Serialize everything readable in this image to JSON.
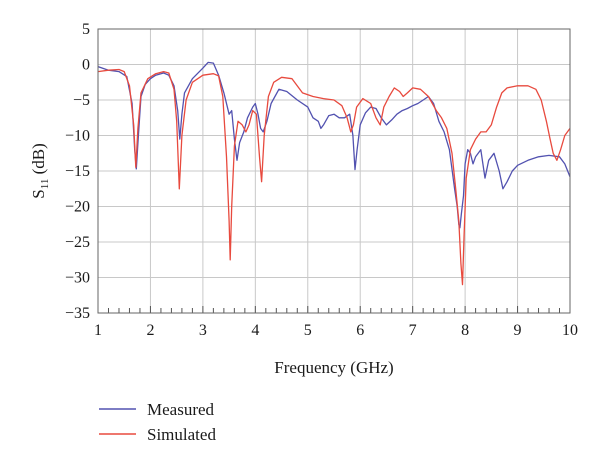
{
  "chart_data": {
    "type": "line",
    "title": "",
    "xlabel": "Frequency (GHz)",
    "ylabel": "S",
    "ylabel_sub": "11",
    "ylabel_unit": " (dB)",
    "xlim": [
      1,
      10
    ],
    "ylim": [
      -35,
      5
    ],
    "xticks": [
      1,
      2,
      3,
      4,
      5,
      6,
      7,
      8,
      9,
      10
    ],
    "yticks": [
      5,
      0,
      -5,
      -10,
      -15,
      -20,
      -25,
      -30,
      -35
    ],
    "grid": true,
    "legend_position": "bottom-left",
    "series": [
      {
        "name": "Measured",
        "color": "#5252b0",
        "points": [
          [
            1.0,
            -0.3
          ],
          [
            1.2,
            -0.8
          ],
          [
            1.4,
            -1.0
          ],
          [
            1.55,
            -1.7
          ],
          [
            1.65,
            -5.5
          ],
          [
            1.7,
            -12.0
          ],
          [
            1.73,
            -14.7
          ],
          [
            1.77,
            -10.0
          ],
          [
            1.82,
            -4.5
          ],
          [
            1.9,
            -2.8
          ],
          [
            2.0,
            -2.0
          ],
          [
            2.1,
            -1.5
          ],
          [
            2.25,
            -1.2
          ],
          [
            2.35,
            -1.5
          ],
          [
            2.45,
            -3.0
          ],
          [
            2.52,
            -6.5
          ],
          [
            2.56,
            -10.5
          ],
          [
            2.6,
            -7.0
          ],
          [
            2.65,
            -4.0
          ],
          [
            2.8,
            -2.0
          ],
          [
            3.0,
            -0.5
          ],
          [
            3.1,
            0.3
          ],
          [
            3.2,
            0.2
          ],
          [
            3.3,
            -1.5
          ],
          [
            3.4,
            -4.0
          ],
          [
            3.5,
            -7.0
          ],
          [
            3.55,
            -6.5
          ],
          [
            3.6,
            -10.5
          ],
          [
            3.65,
            -13.5
          ],
          [
            3.7,
            -11.0
          ],
          [
            3.78,
            -9.5
          ],
          [
            3.85,
            -7.5
          ],
          [
            3.95,
            -6.0
          ],
          [
            4.0,
            -5.5
          ],
          [
            4.05,
            -7.0
          ],
          [
            4.1,
            -9.0
          ],
          [
            4.15,
            -9.5
          ],
          [
            4.22,
            -8.0
          ],
          [
            4.3,
            -5.5
          ],
          [
            4.45,
            -3.5
          ],
          [
            4.6,
            -3.8
          ],
          [
            4.8,
            -5.0
          ],
          [
            5.0,
            -6.0
          ],
          [
            5.1,
            -7.5
          ],
          [
            5.2,
            -8.0
          ],
          [
            5.25,
            -9.0
          ],
          [
            5.3,
            -8.5
          ],
          [
            5.4,
            -7.2
          ],
          [
            5.5,
            -7.0
          ],
          [
            5.6,
            -7.5
          ],
          [
            5.7,
            -7.5
          ],
          [
            5.8,
            -7.0
          ],
          [
            5.86,
            -10.0
          ],
          [
            5.9,
            -14.8
          ],
          [
            5.94,
            -12.0
          ],
          [
            6.0,
            -8.5
          ],
          [
            6.1,
            -6.8
          ],
          [
            6.2,
            -6.0
          ],
          [
            6.3,
            -6.2
          ],
          [
            6.4,
            -7.5
          ],
          [
            6.5,
            -8.5
          ],
          [
            6.6,
            -7.8
          ],
          [
            6.7,
            -7.0
          ],
          [
            6.8,
            -6.5
          ],
          [
            6.9,
            -6.2
          ],
          [
            7.0,
            -5.8
          ],
          [
            7.1,
            -5.5
          ],
          [
            7.2,
            -5.0
          ],
          [
            7.3,
            -4.5
          ],
          [
            7.4,
            -5.5
          ],
          [
            7.5,
            -8.0
          ],
          [
            7.6,
            -9.5
          ],
          [
            7.7,
            -12.0
          ],
          [
            7.8,
            -17.5
          ],
          [
            7.85,
            -20.0
          ],
          [
            7.88,
            -22.5
          ],
          [
            7.9,
            -23.0
          ],
          [
            7.93,
            -21.0
          ],
          [
            7.97,
            -18.5
          ],
          [
            8.0,
            -14.0
          ],
          [
            8.05,
            -12.0
          ],
          [
            8.1,
            -12.5
          ],
          [
            8.15,
            -14.0
          ],
          [
            8.2,
            -13.0
          ],
          [
            8.3,
            -12.0
          ],
          [
            8.38,
            -16.0
          ],
          [
            8.45,
            -13.5
          ],
          [
            8.55,
            -12.5
          ],
          [
            8.65,
            -15.0
          ],
          [
            8.72,
            -17.5
          ],
          [
            8.8,
            -16.5
          ],
          [
            8.9,
            -15.0
          ],
          [
            9.0,
            -14.2
          ],
          [
            9.2,
            -13.5
          ],
          [
            9.4,
            -13.0
          ],
          [
            9.6,
            -12.8
          ],
          [
            9.8,
            -13.0
          ],
          [
            9.9,
            -14.0
          ],
          [
            10.0,
            -15.8
          ]
        ]
      },
      {
        "name": "Simulated",
        "color": "#e84a3e",
        "points": [
          [
            1.0,
            -1.0
          ],
          [
            1.2,
            -0.8
          ],
          [
            1.4,
            -0.7
          ],
          [
            1.5,
            -1.0
          ],
          [
            1.6,
            -3.0
          ],
          [
            1.68,
            -8.5
          ],
          [
            1.72,
            -14.5
          ],
          [
            1.76,
            -9.0
          ],
          [
            1.82,
            -4.0
          ],
          [
            1.95,
            -2.0
          ],
          [
            2.1,
            -1.3
          ],
          [
            2.25,
            -1.0
          ],
          [
            2.35,
            -1.2
          ],
          [
            2.45,
            -3.5
          ],
          [
            2.5,
            -8.0
          ],
          [
            2.55,
            -17.5
          ],
          [
            2.6,
            -10.0
          ],
          [
            2.68,
            -5.0
          ],
          [
            2.8,
            -2.5
          ],
          [
            3.0,
            -1.5
          ],
          [
            3.2,
            -1.3
          ],
          [
            3.3,
            -1.6
          ],
          [
            3.38,
            -4.5
          ],
          [
            3.45,
            -13.0
          ],
          [
            3.5,
            -22.0
          ],
          [
            3.52,
            -27.5
          ],
          [
            3.55,
            -20.0
          ],
          [
            3.6,
            -11.5
          ],
          [
            3.67,
            -8.0
          ],
          [
            3.75,
            -8.5
          ],
          [
            3.82,
            -9.5
          ],
          [
            3.88,
            -8.5
          ],
          [
            3.95,
            -6.5
          ],
          [
            4.02,
            -7.0
          ],
          [
            4.08,
            -13.0
          ],
          [
            4.12,
            -16.5
          ],
          [
            4.17,
            -10.0
          ],
          [
            4.25,
            -4.5
          ],
          [
            4.35,
            -2.5
          ],
          [
            4.5,
            -1.8
          ],
          [
            4.7,
            -2.0
          ],
          [
            4.9,
            -4.0
          ],
          [
            5.1,
            -4.5
          ],
          [
            5.3,
            -4.8
          ],
          [
            5.5,
            -5.0
          ],
          [
            5.65,
            -5.8
          ],
          [
            5.75,
            -7.5
          ],
          [
            5.82,
            -9.5
          ],
          [
            5.87,
            -8.5
          ],
          [
            5.93,
            -6.0
          ],
          [
            6.05,
            -4.8
          ],
          [
            6.2,
            -5.5
          ],
          [
            6.3,
            -7.5
          ],
          [
            6.38,
            -8.5
          ],
          [
            6.45,
            -6.0
          ],
          [
            6.55,
            -4.5
          ],
          [
            6.65,
            -3.3
          ],
          [
            6.75,
            -3.8
          ],
          [
            6.82,
            -4.5
          ],
          [
            6.9,
            -4.0
          ],
          [
            7.0,
            -3.3
          ],
          [
            7.15,
            -3.5
          ],
          [
            7.3,
            -4.5
          ],
          [
            7.45,
            -6.5
          ],
          [
            7.55,
            -7.5
          ],
          [
            7.65,
            -9.0
          ],
          [
            7.75,
            -12.5
          ],
          [
            7.82,
            -17.5
          ],
          [
            7.88,
            -22.0
          ],
          [
            7.92,
            -28.0
          ],
          [
            7.95,
            -31.0
          ],
          [
            7.98,
            -24.0
          ],
          [
            8.02,
            -16.0
          ],
          [
            8.1,
            -12.0
          ],
          [
            8.2,
            -10.5
          ],
          [
            8.3,
            -9.5
          ],
          [
            8.4,
            -9.5
          ],
          [
            8.5,
            -8.5
          ],
          [
            8.6,
            -6.0
          ],
          [
            8.7,
            -4.0
          ],
          [
            8.8,
            -3.3
          ],
          [
            9.0,
            -3.0
          ],
          [
            9.2,
            -3.0
          ],
          [
            9.35,
            -3.5
          ],
          [
            9.45,
            -5.0
          ],
          [
            9.55,
            -8.0
          ],
          [
            9.62,
            -10.5
          ],
          [
            9.68,
            -12.5
          ],
          [
            9.75,
            -13.5
          ],
          [
            9.82,
            -12.0
          ],
          [
            9.9,
            -10.0
          ],
          [
            10.0,
            -9.0
          ]
        ]
      }
    ]
  }
}
